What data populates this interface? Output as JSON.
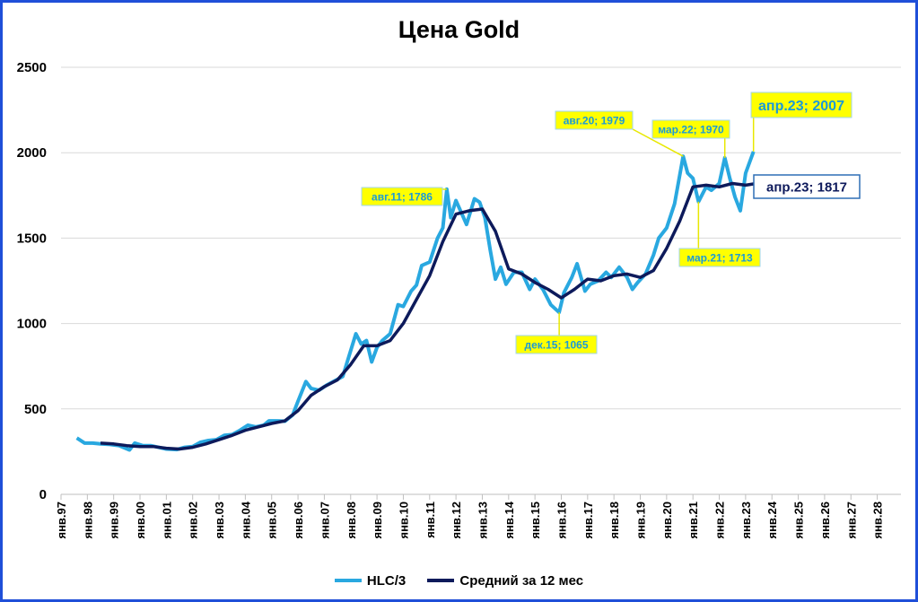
{
  "colors": {
    "hlc": "#29a8e0",
    "avg": "#0d1a5b",
    "frame": "#1f4fd8",
    "callout": "#ffff00"
  },
  "chart_data": {
    "type": "line",
    "title": "Цена Gold",
    "xlabel": "",
    "ylabel": "",
    "ylim": [
      0,
      2500
    ],
    "yticks": [
      "0",
      "500",
      "1000",
      "1500",
      "2000",
      "2500"
    ],
    "xticks": [
      "янв.97",
      "янв.98",
      "янв.99",
      "янв.00",
      "янв.01",
      "янв.02",
      "янв.03",
      "янв.04",
      "янв.05",
      "янв.06",
      "янв.07",
      "янв.08",
      "янв.09",
      "янв.10",
      "янв.11",
      "янв.12",
      "янв.13",
      "янв.14",
      "янв.15",
      "янв.16",
      "янв.17",
      "янв.18",
      "янв.19",
      "янв.20",
      "янв.21",
      "янв.22",
      "янв.23",
      "янв.24",
      "янв.25",
      "янв.26",
      "янв.27",
      "янв.28"
    ],
    "grid": "horizontal",
    "legend_position": "bottom",
    "series": [
      {
        "name": "HLC/3",
        "points": [
          [
            1997.6,
            330
          ],
          [
            1997.9,
            300
          ],
          [
            1998.2,
            300
          ],
          [
            1998.5,
            295
          ],
          [
            1998.8,
            293
          ],
          [
            1999.2,
            285
          ],
          [
            1999.6,
            260
          ],
          [
            1999.8,
            300
          ],
          [
            2000.1,
            285
          ],
          [
            2000.4,
            285
          ],
          [
            2000.7,
            275
          ],
          [
            2001.0,
            265
          ],
          [
            2001.4,
            262
          ],
          [
            2001.7,
            275
          ],
          [
            2002.0,
            280
          ],
          [
            2002.3,
            305
          ],
          [
            2002.6,
            315
          ],
          [
            2002.9,
            320
          ],
          [
            2003.2,
            345
          ],
          [
            2003.5,
            350
          ],
          [
            2003.8,
            375
          ],
          [
            2004.1,
            405
          ],
          [
            2004.4,
            395
          ],
          [
            2004.7,
            405
          ],
          [
            2004.9,
            430
          ],
          [
            2005.2,
            430
          ],
          [
            2005.5,
            428
          ],
          [
            2005.8,
            465
          ],
          [
            2006.0,
            545
          ],
          [
            2006.3,
            660
          ],
          [
            2006.5,
            620
          ],
          [
            2006.8,
            610
          ],
          [
            2007.1,
            640
          ],
          [
            2007.4,
            665
          ],
          [
            2007.7,
            690
          ],
          [
            2007.9,
            790
          ],
          [
            2008.2,
            940
          ],
          [
            2008.4,
            880
          ],
          [
            2008.6,
            900
          ],
          [
            2008.8,
            775
          ],
          [
            2009.0,
            860
          ],
          [
            2009.2,
            900
          ],
          [
            2009.5,
            940
          ],
          [
            2009.8,
            1110
          ],
          [
            2010.0,
            1100
          ],
          [
            2010.3,
            1190
          ],
          [
            2010.5,
            1225
          ],
          [
            2010.7,
            1340
          ],
          [
            2011.0,
            1360
          ],
          [
            2011.3,
            1500
          ],
          [
            2011.5,
            1560
          ],
          [
            2011.65,
            1786
          ],
          [
            2011.8,
            1620
          ],
          [
            2012.0,
            1720
          ],
          [
            2012.2,
            1650
          ],
          [
            2012.4,
            1580
          ],
          [
            2012.7,
            1730
          ],
          [
            2012.9,
            1710
          ],
          [
            2013.1,
            1620
          ],
          [
            2013.3,
            1430
          ],
          [
            2013.5,
            1260
          ],
          [
            2013.7,
            1330
          ],
          [
            2013.9,
            1230
          ],
          [
            2014.2,
            1300
          ],
          [
            2014.5,
            1300
          ],
          [
            2014.8,
            1200
          ],
          [
            2015.0,
            1260
          ],
          [
            2015.3,
            1200
          ],
          [
            2015.6,
            1110
          ],
          [
            2015.92,
            1065
          ],
          [
            2016.1,
            1180
          ],
          [
            2016.4,
            1270
          ],
          [
            2016.6,
            1350
          ],
          [
            2016.9,
            1190
          ],
          [
            2017.1,
            1230
          ],
          [
            2017.4,
            1250
          ],
          [
            2017.7,
            1300
          ],
          [
            2017.9,
            1270
          ],
          [
            2018.2,
            1330
          ],
          [
            2018.5,
            1270
          ],
          [
            2018.7,
            1200
          ],
          [
            2018.9,
            1240
          ],
          [
            2019.2,
            1290
          ],
          [
            2019.5,
            1400
          ],
          [
            2019.7,
            1500
          ],
          [
            2020.0,
            1560
          ],
          [
            2020.3,
            1700
          ],
          [
            2020.63,
            1979
          ],
          [
            2020.8,
            1880
          ],
          [
            2021.0,
            1850
          ],
          [
            2021.21,
            1713
          ],
          [
            2021.5,
            1800
          ],
          [
            2021.7,
            1780
          ],
          [
            2022.0,
            1820
          ],
          [
            2022.21,
            1970
          ],
          [
            2022.4,
            1850
          ],
          [
            2022.6,
            1740
          ],
          [
            2022.8,
            1660
          ],
          [
            2023.0,
            1880
          ],
          [
            2023.3,
            2007
          ]
        ]
      },
      {
        "name": "Средний за 12 мес",
        "points": [
          [
            1998.5,
            300
          ],
          [
            1999.0,
            295
          ],
          [
            1999.5,
            285
          ],
          [
            2000.0,
            280
          ],
          [
            2000.5,
            280
          ],
          [
            2001.0,
            270
          ],
          [
            2001.5,
            265
          ],
          [
            2002.0,
            275
          ],
          [
            2002.5,
            295
          ],
          [
            2003.0,
            320
          ],
          [
            2003.5,
            345
          ],
          [
            2004.0,
            375
          ],
          [
            2004.5,
            395
          ],
          [
            2005.0,
            415
          ],
          [
            2005.5,
            430
          ],
          [
            2006.0,
            490
          ],
          [
            2006.5,
            580
          ],
          [
            2007.0,
            630
          ],
          [
            2007.5,
            670
          ],
          [
            2008.0,
            760
          ],
          [
            2008.5,
            870
          ],
          [
            2009.0,
            870
          ],
          [
            2009.5,
            900
          ],
          [
            2010.0,
            1000
          ],
          [
            2010.5,
            1140
          ],
          [
            2011.0,
            1280
          ],
          [
            2011.5,
            1480
          ],
          [
            2012.0,
            1640
          ],
          [
            2012.5,
            1660
          ],
          [
            2013.0,
            1670
          ],
          [
            2013.5,
            1540
          ],
          [
            2014.0,
            1320
          ],
          [
            2014.5,
            1290
          ],
          [
            2015.0,
            1240
          ],
          [
            2015.5,
            1200
          ],
          [
            2016.0,
            1150
          ],
          [
            2016.5,
            1200
          ],
          [
            2017.0,
            1260
          ],
          [
            2017.5,
            1250
          ],
          [
            2018.0,
            1280
          ],
          [
            2018.5,
            1290
          ],
          [
            2019.0,
            1270
          ],
          [
            2019.5,
            1310
          ],
          [
            2020.0,
            1440
          ],
          [
            2020.5,
            1600
          ],
          [
            2021.0,
            1800
          ],
          [
            2021.5,
            1810
          ],
          [
            2022.0,
            1800
          ],
          [
            2022.5,
            1820
          ],
          [
            2023.0,
            1810
          ],
          [
            2023.3,
            1817
          ]
        ]
      }
    ],
    "annotations": [
      {
        "label": "авг.11; 1786",
        "x": 2011.65,
        "y": 1786,
        "series": "HLC/3"
      },
      {
        "label": "авг.20; 1979",
        "x": 2020.63,
        "y": 1979,
        "series": "HLC/3"
      },
      {
        "label": "мар.22; 1970",
        "x": 2022.21,
        "y": 1970,
        "series": "HLC/3"
      },
      {
        "label": "апр.23; 2007",
        "x": 2023.3,
        "y": 2007,
        "series": "HLC/3"
      },
      {
        "label": "апр.23; 1817",
        "x": 2023.3,
        "y": 1817,
        "series": "Средний за 12 мес"
      },
      {
        "label": "мар.21; 1713",
        "x": 2021.21,
        "y": 1713,
        "series": "HLC/3"
      },
      {
        "label": "дек.15; 1065",
        "x": 2015.92,
        "y": 1065,
        "series": "HLC/3"
      }
    ]
  }
}
